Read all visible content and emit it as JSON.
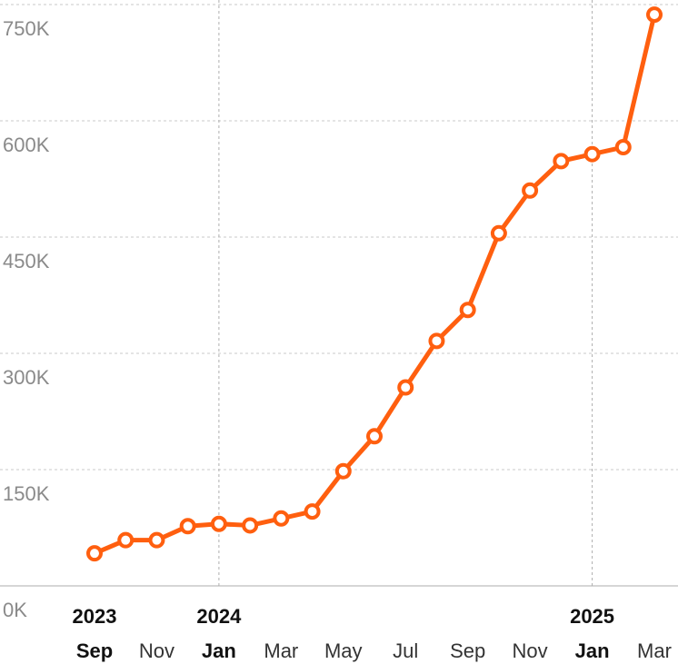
{
  "chart_data": {
    "type": "line",
    "title": "",
    "xlabel": "",
    "ylabel": "",
    "ylim": [
      0,
      750000
    ],
    "y_ticks": [
      {
        "value": 0,
        "label": "0K"
      },
      {
        "value": 150000,
        "label": "150K"
      },
      {
        "value": 300000,
        "label": "300K"
      },
      {
        "value": 450000,
        "label": "450K"
      },
      {
        "value": 600000,
        "label": "600K"
      },
      {
        "value": 750000,
        "label": "750K"
      }
    ],
    "x_ticks": [
      {
        "date": "2023-09",
        "label": "Sep",
        "bold": true
      },
      {
        "date": "2023-11",
        "label": "Nov",
        "bold": false
      },
      {
        "date": "2024-01",
        "label": "Jan",
        "bold": true
      },
      {
        "date": "2024-03",
        "label": "Mar",
        "bold": false
      },
      {
        "date": "2024-05",
        "label": "May",
        "bold": false
      },
      {
        "date": "2024-07",
        "label": "Jul",
        "bold": false
      },
      {
        "date": "2024-09",
        "label": "Sep",
        "bold": false
      },
      {
        "date": "2024-11",
        "label": "Nov",
        "bold": false
      },
      {
        "date": "2025-01",
        "label": "Jan",
        "bold": true
      },
      {
        "date": "2025-03",
        "label": "Mar",
        "bold": false
      }
    ],
    "year_labels": [
      {
        "date": "2023-09",
        "label": "2023"
      },
      {
        "date": "2024-01",
        "label": "2024"
      },
      {
        "date": "2025-01",
        "label": "2025"
      }
    ],
    "year_gridlines": [
      "2024-01",
      "2025-01"
    ],
    "grid": true,
    "color": "#ff5f0f",
    "series": [
      {
        "x": [
          "2023-09",
          "2023-10",
          "2023-11",
          "2023-12",
          "2024-01",
          "2024-02",
          "2024-03",
          "2024-04",
          "2024-05",
          "2024-06",
          "2024-07",
          "2024-08",
          "2024-09",
          "2024-10",
          "2024-11",
          "2024-12",
          "2025-01",
          "2025-02",
          "2025-03"
        ],
        "values": [
          42000,
          59000,
          59000,
          77000,
          80000,
          78000,
          87000,
          96000,
          148000,
          193000,
          256000,
          316000,
          356000,
          455000,
          510000,
          548000,
          557000,
          566000,
          737000
        ]
      }
    ]
  }
}
